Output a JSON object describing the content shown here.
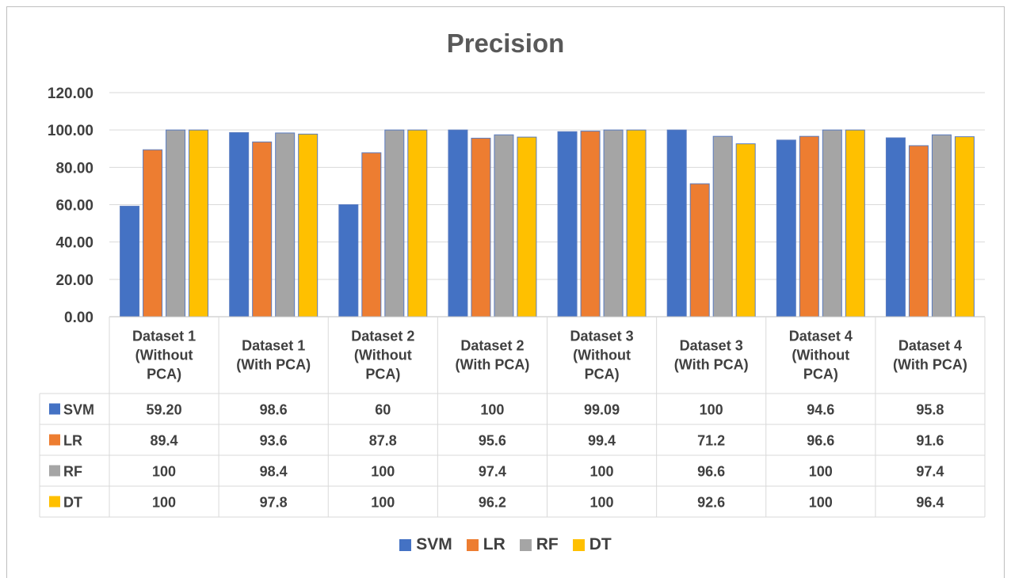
{
  "chart_data": {
    "type": "bar",
    "title": "Precision",
    "xlabel": "",
    "ylabel": "",
    "ylim": [
      0,
      120
    ],
    "yticks": [
      "0.00",
      "20.00",
      "40.00",
      "60.00",
      "80.00",
      "100.00",
      "120.00"
    ],
    "grid": true,
    "legend_position": "bottom",
    "data_table": true,
    "categories": [
      [
        "Dataset 1",
        "(Without",
        "PCA)"
      ],
      [
        "Dataset 1",
        "(With PCA)"
      ],
      [
        "Dataset 2",
        "(Without",
        "PCA)"
      ],
      [
        "Dataset 2",
        "(With PCA)"
      ],
      [
        "Dataset 3",
        "(Without",
        "PCA)"
      ],
      [
        "Dataset 3",
        "(With PCA)"
      ],
      [
        "Dataset 4",
        "(Without",
        "PCA)"
      ],
      [
        "Dataset 4",
        "(With PCA)"
      ]
    ],
    "series": [
      {
        "name": "SVM",
        "color": "#4472c4",
        "values": [
          59.2,
          98.6,
          60,
          100,
          99.09,
          100,
          94.6,
          95.8
        ],
        "labels": [
          "59.20",
          "98.6",
          "60",
          "100",
          "99.09",
          "100",
          "94.6",
          "95.8"
        ]
      },
      {
        "name": "LR",
        "color": "#ed7d31",
        "values": [
          89.4,
          93.6,
          87.8,
          95.6,
          99.4,
          71.2,
          96.6,
          91.6
        ],
        "labels": [
          "89.4",
          "93.6",
          "87.8",
          "95.6",
          "99.4",
          "71.2",
          "96.6",
          "91.6"
        ]
      },
      {
        "name": "RF",
        "color": "#a5a5a5",
        "values": [
          100,
          98.4,
          100,
          97.4,
          100,
          96.6,
          100,
          97.4
        ],
        "labels": [
          "100",
          "98.4",
          "100",
          "97.4",
          "100",
          "96.6",
          "100",
          "97.4"
        ]
      },
      {
        "name": "DT",
        "color": "#ffc000",
        "values": [
          100,
          97.8,
          100,
          96.2,
          100,
          92.6,
          100,
          96.4
        ],
        "labels": [
          "100",
          "97.8",
          "100",
          "96.2",
          "100",
          "92.6",
          "100",
          "96.4"
        ]
      }
    ]
  }
}
